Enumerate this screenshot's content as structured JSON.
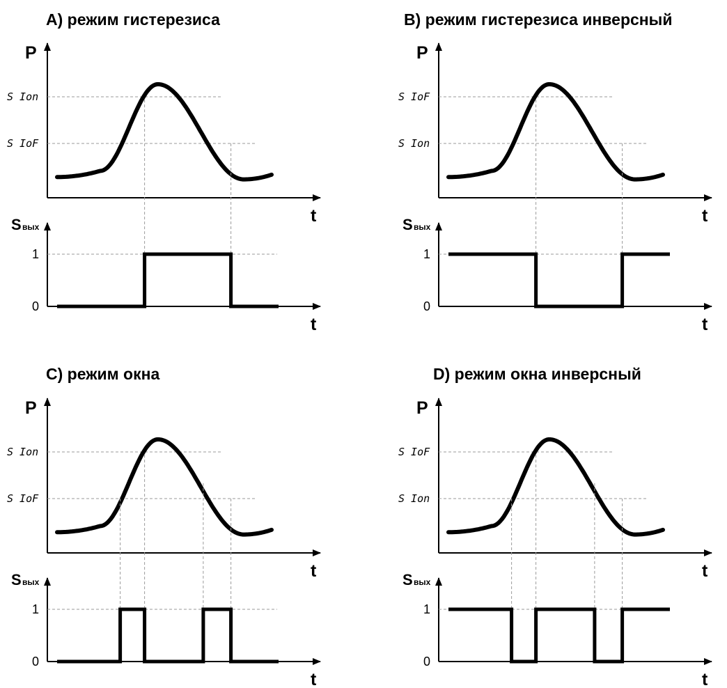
{
  "panels": [
    {
      "id": "A",
      "title": "A) режим гистерезиса",
      "y_axis": "P",
      "x_axis": "t",
      "upper_threshold": "S Ion",
      "lower_threshold": "S IoF",
      "out_axis": "S",
      "out_axis_sub": "вых",
      "level_high": "1",
      "level_low": "0",
      "initial_output": 0,
      "output_segments": [
        [
          0,
          0.395,
          0
        ],
        [
          0.395,
          0.785,
          1
        ],
        [
          0.785,
          1,
          0
        ]
      ]
    },
    {
      "id": "B",
      "title": "B) режим гистерезиса инверсный",
      "y_axis": "P",
      "x_axis": "t",
      "upper_threshold": "S IoF",
      "lower_threshold": "S Ion",
      "out_axis": "S",
      "out_axis_sub": "вых",
      "level_high": "1",
      "level_low": "0",
      "initial_output": 1,
      "output_segments": [
        [
          0,
          0.395,
          1
        ],
        [
          0.395,
          0.785,
          0
        ],
        [
          0.785,
          1,
          1
        ]
      ]
    },
    {
      "id": "C",
      "title": "C) режим окна",
      "y_axis": "P",
      "x_axis": "t",
      "upper_threshold": "S Ion",
      "lower_threshold": "S IoF",
      "out_axis": "S",
      "out_axis_sub": "вых",
      "level_high": "1",
      "level_low": "0",
      "initial_output": 0,
      "output_segments": [
        [
          0,
          0.285,
          0
        ],
        [
          0.285,
          0.395,
          1
        ],
        [
          0.395,
          0.66,
          0
        ],
        [
          0.66,
          0.785,
          1
        ],
        [
          0.785,
          1,
          0
        ]
      ]
    },
    {
      "id": "D",
      "title": "D) режим окна инверсный",
      "y_axis": "P",
      "x_axis": "t",
      "upper_threshold": "S IoF",
      "lower_threshold": "S Ion",
      "out_axis": "S",
      "out_axis_sub": "вых",
      "level_high": "1",
      "level_low": "0",
      "initial_output": 1,
      "output_segments": [
        [
          0,
          0.285,
          1
        ],
        [
          0.285,
          0.395,
          0
        ],
        [
          0.395,
          0.66,
          1
        ],
        [
          0.66,
          0.785,
          0
        ],
        [
          0.785,
          1,
          1
        ]
      ]
    }
  ],
  "colors": {
    "ink": "#000000",
    "guide": "#999999",
    "background": "#ffffff"
  }
}
